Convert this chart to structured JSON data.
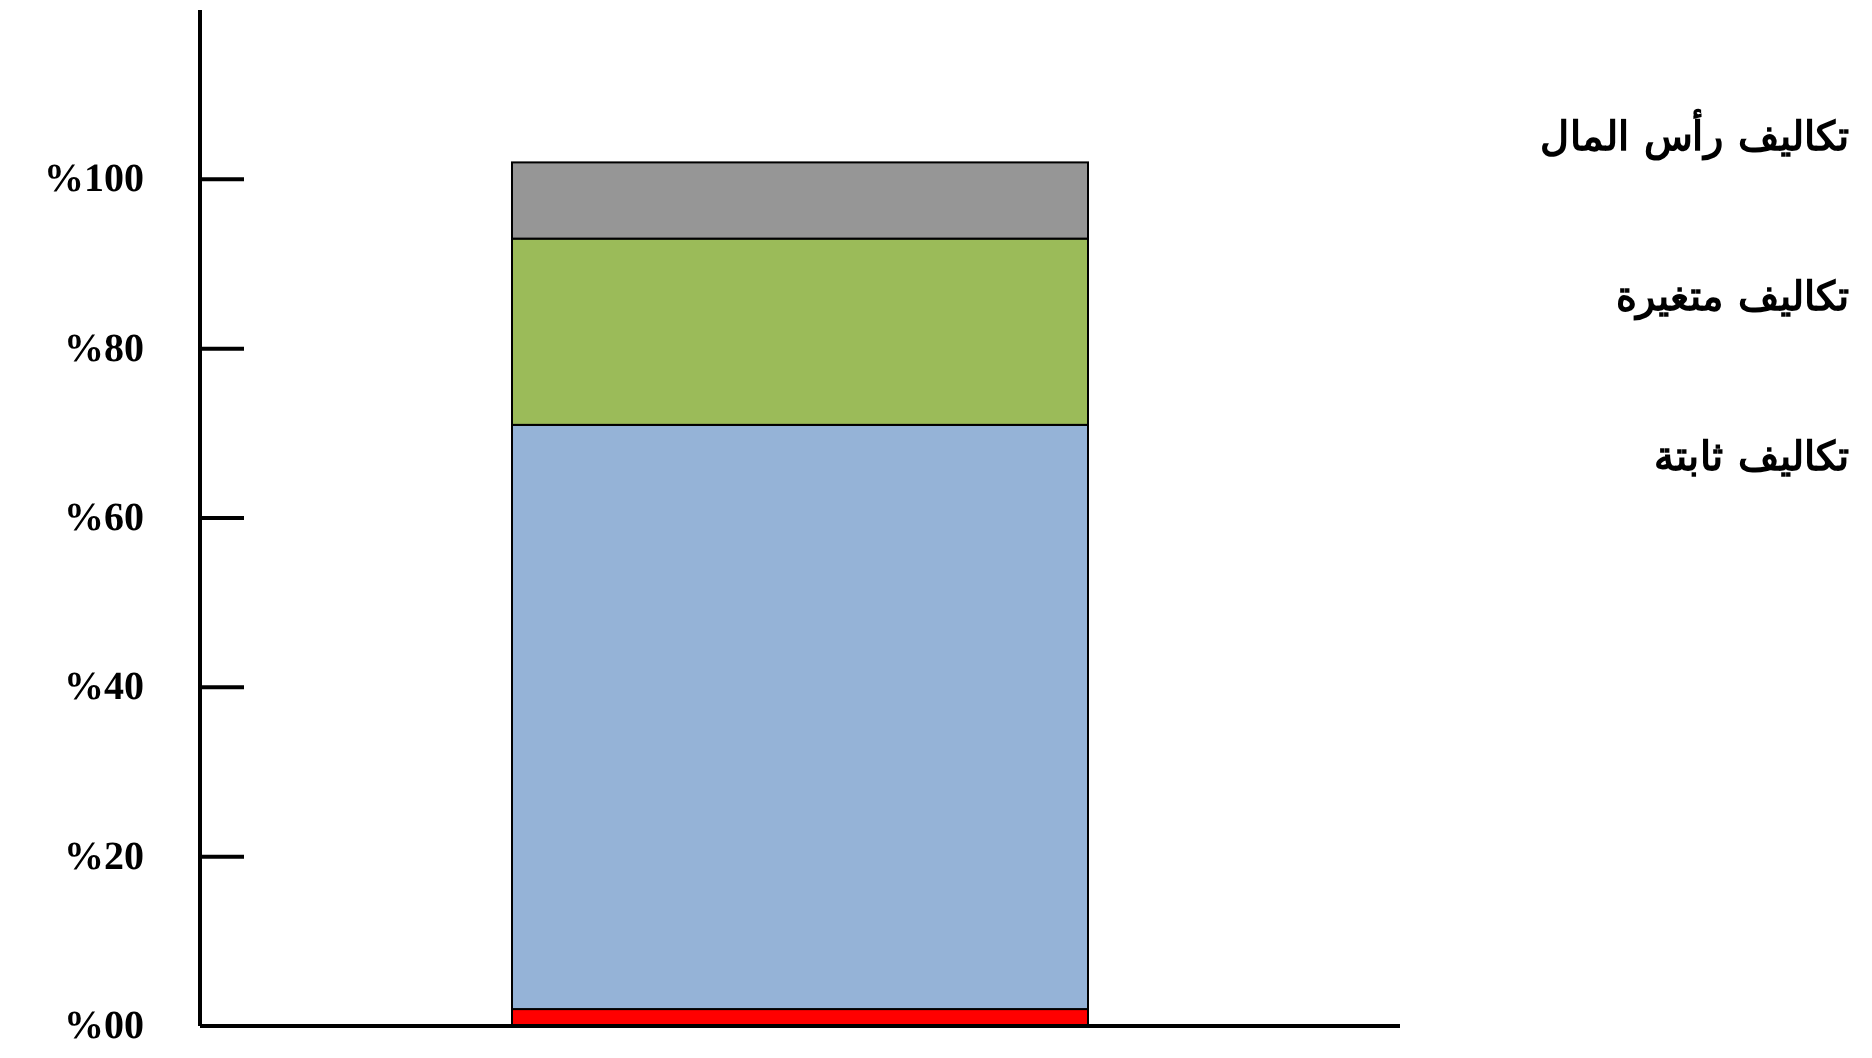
{
  "chart_data": {
    "type": "bar",
    "stacked": true,
    "categories": [
      null
    ],
    "series": [
      {
        "color": "#ff0000",
        "values": [
          2
        ]
      },
      {
        "name": "تكاليف ثابتة",
        "color": "#95b3d7",
        "values": [
          69
        ]
      },
      {
        "name": "تكاليف متغيرة",
        "color": "#9bbb59",
        "values": [
          22
        ]
      },
      {
        "name": "تكاليف رأس المال",
        "color": "#969696",
        "values": [
          9
        ]
      }
    ],
    "ylim": [
      0,
      120
    ],
    "yticks": [
      {
        "value": 0,
        "label": "%00"
      },
      {
        "value": 20,
        "label": "%20"
      },
      {
        "value": 40,
        "label": "%40"
      },
      {
        "value": 60,
        "label": "%60"
      },
      {
        "value": 80,
        "label": "%80"
      },
      {
        "value": 100,
        "label": "%100"
      }
    ],
    "grid": false,
    "legend": "right"
  }
}
